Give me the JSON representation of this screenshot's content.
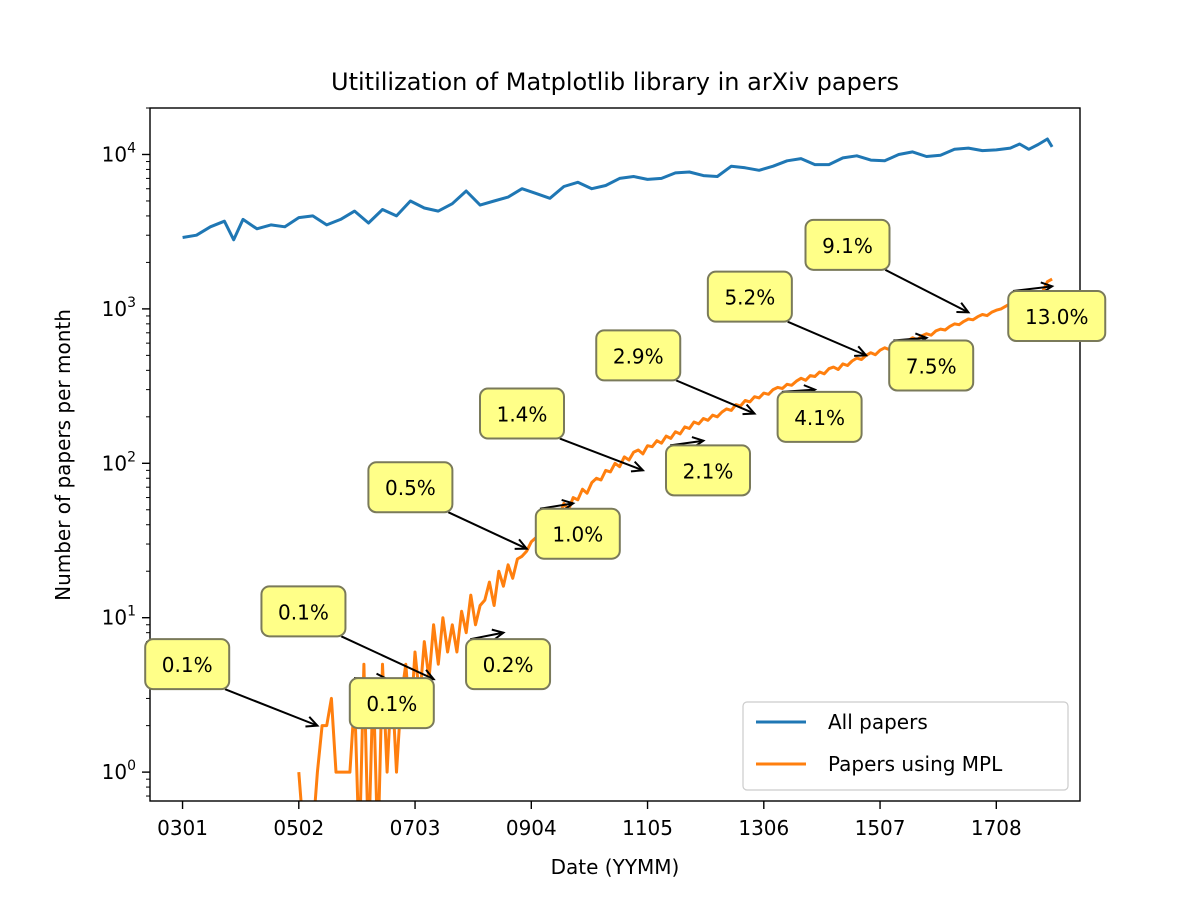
{
  "chart_data": {
    "type": "line",
    "title": "Utitilization of Matplotlib library in arXiv papers",
    "xlabel": "Date (YYMM)",
    "ylabel": "Number of papers per month",
    "yscale": "log",
    "ylim": [
      0.65,
      20000
    ],
    "xlim": [
      "0206",
      "1902"
    ],
    "x_tick_labels": [
      "0301",
      "0502",
      "0703",
      "0904",
      "1105",
      "1306",
      "1507",
      "1708"
    ],
    "y_ticks": [
      1,
      10,
      100,
      1000,
      10000
    ],
    "y_tick_labels": [
      {
        "base": "10",
        "exp": "0"
      },
      {
        "base": "10",
        "exp": "1"
      },
      {
        "base": "10",
        "exp": "2"
      },
      {
        "base": "10",
        "exp": "3"
      },
      {
        "base": "10",
        "exp": "4"
      }
    ],
    "legend_position": "lower-right",
    "grid": false,
    "series": [
      {
        "name": "All papers",
        "color": "#1f77b4",
        "points": [
          [
            "0301",
            2900
          ],
          [
            "0304",
            3000
          ],
          [
            "0307",
            3400
          ],
          [
            "0310",
            3700
          ],
          [
            "0312",
            2800
          ],
          [
            "0402",
            3800
          ],
          [
            "0405",
            3300
          ],
          [
            "0408",
            3500
          ],
          [
            "0411",
            3400
          ],
          [
            "0502",
            3900
          ],
          [
            "0505",
            4000
          ],
          [
            "0508",
            3500
          ],
          [
            "0511",
            3800
          ],
          [
            "0602",
            4300
          ],
          [
            "0605",
            3600
          ],
          [
            "0608",
            4400
          ],
          [
            "0611",
            4000
          ],
          [
            "0702",
            5000
          ],
          [
            "0705",
            4500
          ],
          [
            "0708",
            4300
          ],
          [
            "0711",
            4800
          ],
          [
            "0802",
            5800
          ],
          [
            "0805",
            4700
          ],
          [
            "0808",
            5000
          ],
          [
            "0811",
            5300
          ],
          [
            "0902",
            6000
          ],
          [
            "0905",
            5600
          ],
          [
            "0908",
            5200
          ],
          [
            "0911",
            6200
          ],
          [
            "1002",
            6600
          ],
          [
            "1005",
            6000
          ],
          [
            "1008",
            6300
          ],
          [
            "1011",
            7000
          ],
          [
            "1102",
            7200
          ],
          [
            "1105",
            6900
          ],
          [
            "1108",
            7000
          ],
          [
            "1111",
            7600
          ],
          [
            "1202",
            7700
          ],
          [
            "1205",
            7300
          ],
          [
            "1208",
            7200
          ],
          [
            "1211",
            8400
          ],
          [
            "1302",
            8200
          ],
          [
            "1305",
            7900
          ],
          [
            "1308",
            8400
          ],
          [
            "1311",
            9100
          ],
          [
            "1402",
            9400
          ],
          [
            "1405",
            8600
          ],
          [
            "1408",
            8600
          ],
          [
            "1411",
            9500
          ],
          [
            "1502",
            9800
          ],
          [
            "1505",
            9200
          ],
          [
            "1508",
            9100
          ],
          [
            "1511",
            10000
          ],
          [
            "1602",
            10400
          ],
          [
            "1605",
            9700
          ],
          [
            "1608",
            9900
          ],
          [
            "1611",
            10800
          ],
          [
            "1702",
            11000
          ],
          [
            "1705",
            10600
          ],
          [
            "1708",
            10700
          ],
          [
            "1711",
            11000
          ],
          [
            "1801",
            11700
          ],
          [
            "1803",
            10800
          ],
          [
            "1805",
            11600
          ],
          [
            "1807",
            12600
          ],
          [
            "1808",
            11200
          ]
        ]
      },
      {
        "name": "Papers using MPL",
        "color": "#ff7f0e",
        "points": [
          [
            "0502",
            1
          ],
          [
            "0503",
            0.4
          ],
          [
            "0505",
            0.4
          ],
          [
            "0506",
            1
          ],
          [
            "0507",
            2
          ],
          [
            "0508",
            2
          ],
          [
            "0509",
            3
          ],
          [
            "0510",
            1
          ],
          [
            "0512",
            1
          ],
          [
            "0601",
            1
          ],
          [
            "0602",
            3
          ],
          [
            "0603",
            0.3
          ],
          [
            "0604",
            5
          ],
          [
            "0605",
            0.3
          ],
          [
            "0606",
            4
          ],
          [
            "0607",
            0.3
          ],
          [
            "0608",
            5
          ],
          [
            "0609",
            1
          ],
          [
            "0610",
            4
          ],
          [
            "0611",
            1
          ],
          [
            "0612",
            3
          ],
          [
            "0701",
            5
          ],
          [
            "0702",
            2
          ],
          [
            "0703",
            6
          ],
          [
            "0704",
            3
          ],
          [
            "0705",
            7
          ],
          [
            "0706",
            4
          ],
          [
            "0707",
            9
          ],
          [
            "0708",
            5
          ],
          [
            "0709",
            10
          ],
          [
            "0710",
            6
          ],
          [
            "0711",
            9
          ],
          [
            "0712",
            6
          ],
          [
            "0801",
            11
          ],
          [
            "0802",
            8
          ],
          [
            "0803",
            14
          ],
          [
            "0804",
            9
          ],
          [
            "0805",
            12
          ],
          [
            "0806",
            13
          ],
          [
            "0807",
            17
          ],
          [
            "0808",
            12
          ],
          [
            "0809",
            20
          ],
          [
            "0810",
            16
          ],
          [
            "0811",
            22
          ],
          [
            "0812",
            18
          ],
          [
            "0901",
            24
          ],
          [
            "0902",
            25
          ],
          [
            "0903",
            27
          ],
          [
            "0904",
            31
          ],
          [
            "0905",
            33
          ],
          [
            "0906",
            38
          ],
          [
            "0907",
            35
          ],
          [
            "0908",
            42
          ],
          [
            "0909",
            48
          ],
          [
            "0910",
            45
          ],
          [
            "0911",
            55
          ],
          [
            "0912",
            50
          ],
          [
            "1001",
            60
          ],
          [
            "1002",
            58
          ],
          [
            "1003",
            68
          ],
          [
            "1004",
            64
          ],
          [
            "1005",
            75
          ],
          [
            "1006",
            80
          ],
          [
            "1007",
            78
          ],
          [
            "1008",
            90
          ],
          [
            "1009",
            88
          ],
          [
            "1010",
            100
          ],
          [
            "1011",
            95
          ],
          [
            "1012",
            110
          ],
          [
            "1101",
            105
          ],
          [
            "1102",
            118
          ],
          [
            "1103",
            122
          ],
          [
            "1104",
            115
          ],
          [
            "1105",
            130
          ],
          [
            "1106",
            128
          ],
          [
            "1107",
            140
          ],
          [
            "1108",
            135
          ],
          [
            "1109",
            150
          ],
          [
            "1110",
            145
          ],
          [
            "1111",
            160
          ],
          [
            "1112",
            155
          ],
          [
            "1201",
            172
          ],
          [
            "1202",
            168
          ],
          [
            "1203",
            185
          ],
          [
            "1204",
            180
          ],
          [
            "1205",
            195
          ],
          [
            "1206",
            190
          ],
          [
            "1207",
            205
          ],
          [
            "1208",
            200
          ],
          [
            "1209",
            215
          ],
          [
            "1210",
            225
          ],
          [
            "1211",
            220
          ],
          [
            "1212",
            240
          ],
          [
            "1301",
            235
          ],
          [
            "1302",
            255
          ],
          [
            "1303",
            250
          ],
          [
            "1304",
            270
          ],
          [
            "1305",
            265
          ],
          [
            "1306",
            285
          ],
          [
            "1307",
            280
          ],
          [
            "1308",
            300
          ],
          [
            "1309",
            310
          ],
          [
            "1310",
            305
          ],
          [
            "1311",
            325
          ],
          [
            "1312",
            320
          ],
          [
            "1401",
            340
          ],
          [
            "1402",
            355
          ],
          [
            "1403",
            345
          ],
          [
            "1404",
            370
          ],
          [
            "1405",
            365
          ],
          [
            "1406",
            390
          ],
          [
            "1407",
            380
          ],
          [
            "1408",
            410
          ],
          [
            "1409",
            420
          ],
          [
            "1410",
            405
          ],
          [
            "1411",
            440
          ],
          [
            "1412",
            430
          ],
          [
            "1501",
            460
          ],
          [
            "1502",
            480
          ],
          [
            "1503",
            470
          ],
          [
            "1504",
            500
          ],
          [
            "1505",
            520
          ],
          [
            "1506",
            505
          ],
          [
            "1507",
            540
          ],
          [
            "1508",
            560
          ],
          [
            "1509",
            545
          ],
          [
            "1510",
            580
          ],
          [
            "1511",
            600
          ],
          [
            "1512",
            590
          ],
          [
            "1601",
            620
          ],
          [
            "1602",
            650
          ],
          [
            "1603",
            630
          ],
          [
            "1604",
            670
          ],
          [
            "1605",
            690
          ],
          [
            "1606",
            675
          ],
          [
            "1607",
            720
          ],
          [
            "1608",
            740
          ],
          [
            "1609",
            730
          ],
          [
            "1610",
            770
          ],
          [
            "1611",
            800
          ],
          [
            "1612",
            790
          ],
          [
            "1701",
            830
          ],
          [
            "1702",
            860
          ],
          [
            "1703",
            850
          ],
          [
            "1704",
            890
          ],
          [
            "1705",
            920
          ],
          [
            "1706",
            905
          ],
          [
            "1707",
            950
          ],
          [
            "1708",
            980
          ],
          [
            "1709",
            1000
          ],
          [
            "1710",
            1040
          ],
          [
            "1711",
            1080
          ],
          [
            "1712",
            1060
          ],
          [
            "1801",
            1120
          ],
          [
            "1802",
            1160
          ],
          [
            "1803",
            1150
          ],
          [
            "1804",
            1200
          ],
          [
            "1805",
            1250
          ],
          [
            "1806",
            1300
          ],
          [
            "1807",
            1500
          ],
          [
            "1808",
            1560
          ]
        ]
      }
    ],
    "annotations": [
      {
        "text": "0.1%",
        "target": [
          "0506",
          2
        ],
        "box_at": [
          "0302",
          5
        ]
      },
      {
        "text": "0.1%",
        "target": [
          "0707",
          4
        ],
        "box_at": [
          "0503",
          11
        ]
      },
      {
        "text": "0.1%",
        "target": [
          "0609",
          4
        ],
        "box_at": [
          "0610",
          2.8
        ]
      },
      {
        "text": "0.2%",
        "target": [
          "0810",
          8
        ],
        "box_at": [
          "0811",
          5
        ]
      },
      {
        "text": "0.5%",
        "target": [
          "0903",
          28
        ],
        "box_at": [
          "0702",
          70
        ]
      },
      {
        "text": "1.0%",
        "target": [
          "1001",
          55
        ],
        "box_at": [
          "1002",
          35
        ]
      },
      {
        "text": "1.4%",
        "target": [
          "1104",
          90
        ],
        "box_at": [
          "0902",
          210
        ]
      },
      {
        "text": "2.1%",
        "target": [
          "1205",
          140
        ],
        "box_at": [
          "1206",
          90
        ]
      },
      {
        "text": "2.9%",
        "target": [
          "1304",
          210
        ],
        "box_at": [
          "1103",
          500
        ]
      },
      {
        "text": "4.1%",
        "target": [
          "1405",
          300
        ],
        "box_at": [
          "1406",
          200
        ]
      },
      {
        "text": "5.2%",
        "target": [
          "1504",
          500
        ],
        "box_at": [
          "1303",
          1200
        ]
      },
      {
        "text": "7.5%",
        "target": [
          "1605",
          650
        ],
        "box_at": [
          "1606",
          430
        ]
      },
      {
        "text": "9.1%",
        "target": [
          "1702",
          950
        ],
        "box_at": [
          "1500",
          2600
        ]
      },
      {
        "text": "13.0%",
        "target": [
          "1808",
          1400
        ],
        "box_at": [
          "1809",
          900
        ]
      }
    ],
    "annotation_box_color": "#ffff88",
    "annotation_border_color": "#7a7a5a"
  }
}
